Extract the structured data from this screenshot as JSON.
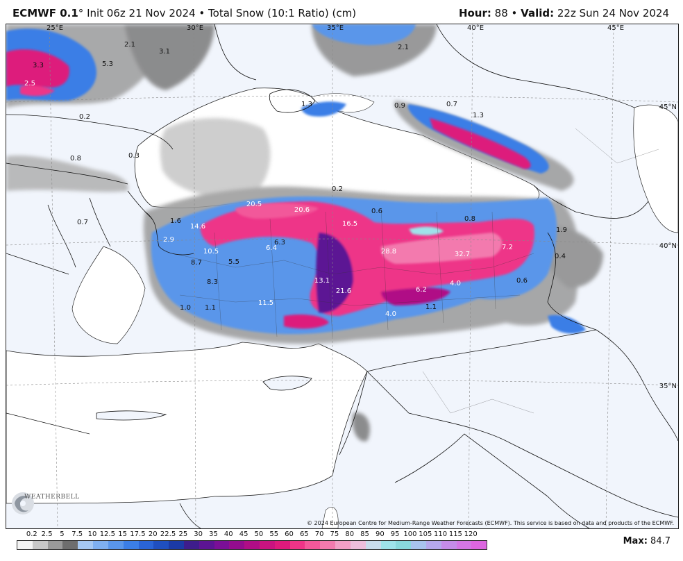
{
  "header": {
    "model": "ECMWF 0.1",
    "degree": "°",
    "init": "Init 06z 21 Nov 2024",
    "separator": "•",
    "product": "Total Snow (10:1 Ratio) (cm)",
    "hour_label": "Hour:",
    "hour_value": "88",
    "valid_label": "Valid:",
    "valid_value": "22z Sun 24 Nov 2024"
  },
  "gridlines": {
    "lon_labels": [
      "25°E",
      "30°E",
      "35°E",
      "40°E",
      "45°E"
    ],
    "lat_labels": [
      "45°N",
      "40°N",
      "35°N"
    ]
  },
  "map_values": [
    {
      "text": "3.3"
    },
    {
      "text": "2.5"
    },
    {
      "text": "2.1"
    },
    {
      "text": "3.1"
    },
    {
      "text": "5.3"
    },
    {
      "text": "2.1"
    },
    {
      "text": "1.3"
    },
    {
      "text": "0.9"
    },
    {
      "text": "0.7"
    },
    {
      "text": "1.3"
    },
    {
      "text": "0.2"
    },
    {
      "text": "0.8"
    },
    {
      "text": "0.3"
    },
    {
      "text": "0.2"
    },
    {
      "text": "20.5"
    },
    {
      "text": "20.6"
    },
    {
      "text": "0.6"
    },
    {
      "text": "16.5"
    },
    {
      "text": "0.8"
    },
    {
      "text": "1.6"
    },
    {
      "text": "14.6"
    },
    {
      "text": "1.9"
    },
    {
      "text": "0.7"
    },
    {
      "text": "2.9"
    },
    {
      "text": "10.5"
    },
    {
      "text": "6.4"
    },
    {
      "text": "6.3"
    },
    {
      "text": "28.8"
    },
    {
      "text": "32.7"
    },
    {
      "text": "7.2"
    },
    {
      "text": "0.4"
    },
    {
      "text": "8.7"
    },
    {
      "text": "5.5"
    },
    {
      "text": "13.1"
    },
    {
      "text": "8.3"
    },
    {
      "text": "21.6"
    },
    {
      "text": "6.2"
    },
    {
      "text": "4.0"
    },
    {
      "text": "0.6"
    },
    {
      "text": "1.0"
    },
    {
      "text": "1.1"
    },
    {
      "text": "11.5"
    },
    {
      "text": "1.1"
    },
    {
      "text": "4.0"
    }
  ],
  "logo_text": "WEATHERBELL",
  "copyright": "© 2024 European Centre for Medium-Range Weather Forecasts (ECMWF). This service is based on data and products of the ECMWF.",
  "scale": {
    "labels": [
      "0.2",
      "2.5",
      "5",
      "7.5",
      "10",
      "12.5",
      "15",
      "17.5",
      "20",
      "22.5",
      "25",
      "30",
      "35",
      "40",
      "45",
      "50",
      "55",
      "60",
      "65",
      "70",
      "75",
      "80",
      "85",
      "90",
      "95",
      "100",
      "105",
      "110",
      "115",
      "120"
    ],
    "colors": [
      "#f4f4f4",
      "#c8c8c8",
      "#9a9a9a",
      "#6e6e6e",
      "#a6c8f2",
      "#7fb0f0",
      "#5a96ea",
      "#3b7ee6",
      "#2a64d6",
      "#1f4fc0",
      "#1b3aa6",
      "#3e1d8c",
      "#5c1494",
      "#7a0f96",
      "#940c8e",
      "#b00d86",
      "#c91380",
      "#dd1a7c",
      "#ee3488",
      "#f2589a",
      "#f37aae",
      "#f2a0c6",
      "#eebedc",
      "#c9dcec",
      "#9fe2ea",
      "#8ad8dc",
      "#a8c3ee",
      "#b6a8ec",
      "#c58ce8",
      "#d476e4",
      "#dc66e0"
    ]
  },
  "max_label": "Max:",
  "max_value": "84.7"
}
